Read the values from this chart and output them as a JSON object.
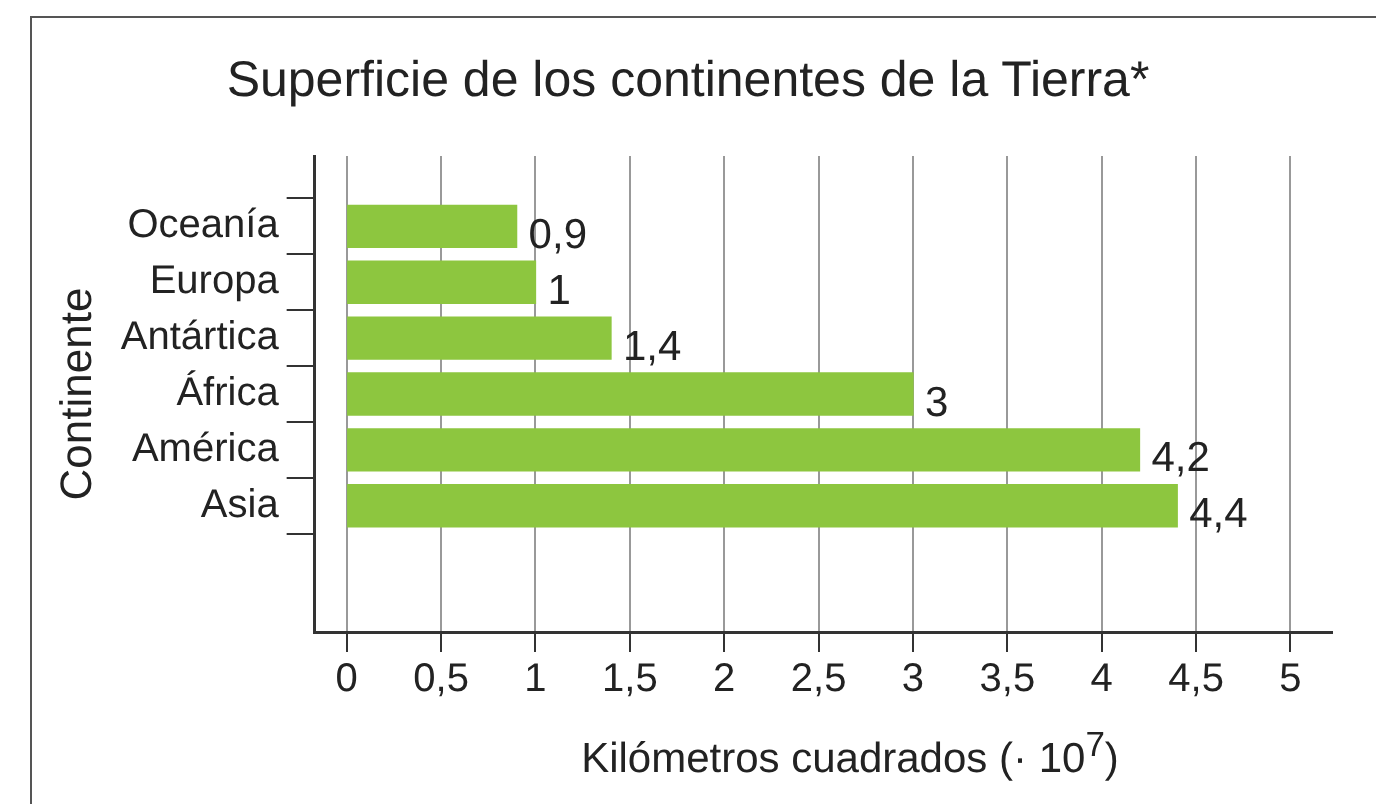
{
  "chart_data": {
    "type": "bar",
    "orientation": "horizontal",
    "title": "Superficie de los continentes de la Tierra*",
    "xlabel": "Kilómetros cuadrados (· 10$^{7}$)",
    "ylabel": "Continente",
    "categories": [
      "Oceanía",
      "Europa",
      "Antártica",
      "África",
      "América",
      "Asia"
    ],
    "values": [
      0.9,
      1,
      1.4,
      3,
      4.2,
      4.4
    ],
    "value_labels": [
      "0,9",
      "1",
      "1,4",
      "3",
      "4,2",
      "4,4"
    ],
    "color": "#8dc63f",
    "xlim": [
      -0.17,
      5.22
    ],
    "xticks": [
      0,
      {
        "value": 0.5,
        "label": "0,5"
      },
      1,
      {
        "value": 1.5,
        "label": "1,5"
      },
      2,
      {
        "value": 2.5,
        "label": "2,5"
      },
      3,
      {
        "value": 3.5,
        "label": "3,5"
      },
      4,
      {
        "value": 4.5,
        "label": "4,5"
      },
      5
    ],
    "grid": "x",
    "legend": false
  }
}
